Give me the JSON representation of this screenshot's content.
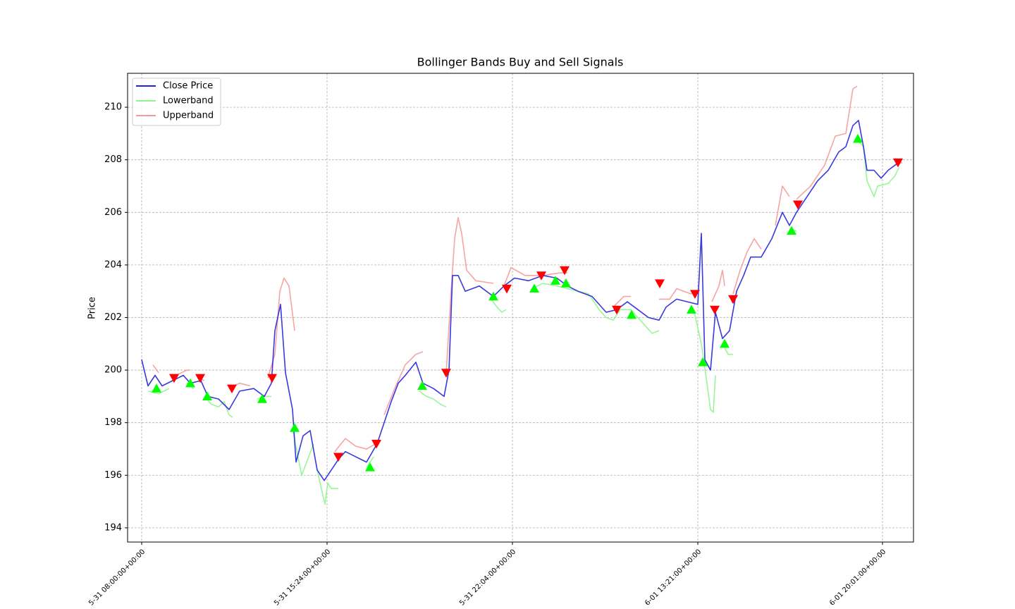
{
  "chart_data": {
    "type": "line",
    "title": "Bollinger Bands Buy and Sell Signals",
    "y_label": "Price",
    "xlim": [
      -20,
      1095
    ],
    "ylim": [
      193.46,
      211.29
    ],
    "xticks": [
      {
        "value": 0,
        "label": "5-31 08:00:00+00:00"
      },
      {
        "value": 263,
        "label": "5-31 15:24:00+00:00"
      },
      {
        "value": 526,
        "label": "5-31 22:04:00+00:00"
      },
      {
        "value": 789,
        "label": "6-01 13:21:00+00:00"
      },
      {
        "value": 1051,
        "label": "6-01 20:01:00+00:00"
      }
    ],
    "yticks": [
      194,
      196,
      198,
      200,
      202,
      204,
      206,
      208,
      210
    ],
    "grid": true,
    "legend": "upper left",
    "series": [
      {
        "name": "Close Price",
        "color": "#2323dd",
        "x": [
          0,
          9,
          19,
          29,
          44,
          59,
          69,
          84,
          94,
          109,
          124,
          139,
          159,
          174,
          184,
          189,
          197,
          204,
          214,
          219,
          229,
          239,
          249,
          259,
          269,
          279,
          289,
          304,
          319,
          334,
          344,
          354,
          364,
          374,
          389,
          399,
          414,
          429,
          436,
          441,
          449,
          459,
          479,
          499,
          514,
          529,
          549,
          569,
          589,
          604,
          619,
          639,
          659,
          674,
          689,
          704,
          719,
          734,
          744,
          759,
          774,
          789,
          794,
          799,
          807,
          814,
          824,
          834,
          844,
          854,
          864,
          879,
          894,
          909,
          919,
          929,
          944,
          959,
          974,
          989,
          999,
          1009,
          1017,
          1024,
          1029,
          1039,
          1049,
          1059,
          1074
        ],
        "values": [
          200.4,
          199.4,
          199.8,
          199.4,
          199.6,
          199.8,
          199.5,
          199.6,
          199.0,
          198.9,
          198.5,
          199.2,
          199.3,
          199.0,
          199.5,
          201.5,
          202.5,
          199.9,
          198.5,
          196.5,
          197.5,
          197.7,
          196.2,
          195.8,
          196.2,
          196.6,
          196.9,
          196.7,
          196.5,
          197.2,
          198.0,
          198.8,
          199.5,
          199.8,
          200.3,
          199.5,
          199.3,
          199.0,
          200.0,
          203.6,
          203.6,
          203.0,
          203.2,
          202.8,
          203.2,
          203.5,
          203.4,
          203.6,
          203.5,
          203.2,
          203.0,
          202.8,
          202.2,
          202.3,
          202.6,
          202.3,
          202.0,
          201.9,
          202.4,
          202.7,
          202.6,
          202.5,
          205.2,
          200.4,
          200.0,
          202.2,
          201.2,
          201.5,
          203.0,
          203.6,
          204.3,
          204.3,
          205.0,
          206.0,
          205.5,
          206.0,
          206.6,
          207.2,
          207.6,
          208.3,
          208.5,
          209.3,
          209.5,
          208.5,
          207.6,
          207.6,
          207.3,
          207.6,
          207.9
        ]
      },
      {
        "name": "Lowerband",
        "color": "#8ef58e",
        "x": [
          9,
          24,
          39,
          52,
          64,
          74,
          82,
          89,
          99,
          109,
          117,
          124,
          129,
          146,
          164,
          174,
          184,
          199,
          214,
          221,
          227,
          234,
          244,
          246,
          249,
          254,
          260,
          264,
          269,
          279,
          299,
          319,
          329,
          362,
          394,
          404,
          414,
          424,
          432,
          464,
          496,
          504,
          511,
          517,
          536,
          554,
          569,
          589,
          604,
          619,
          634,
          649,
          659,
          669,
          679,
          694,
          704,
          714,
          724,
          734,
          759,
          784,
          794,
          802,
          807,
          811,
          814,
          819,
          824,
          832,
          839,
          879,
          919,
          929,
          972,
          1014,
          1024,
          1029,
          1039,
          1044,
          1059,
          1069,
          1074
        ],
        "values": [
          199.2,
          199.1,
          199.3,
          null,
          199.5,
          199.3,
          null,
          199.0,
          198.7,
          198.6,
          198.8,
          198.3,
          198.2,
          null,
          198.9,
          199.0,
          199.0,
          null,
          197.8,
          196.8,
          196.0,
          196.5,
          197.2,
          null,
          196.2,
          195.6,
          194.9,
          195.7,
          195.5,
          195.5,
          null,
          196.3,
          196.7,
          null,
          199.2,
          199.0,
          198.9,
          198.7,
          198.6,
          null,
          202.7,
          202.4,
          202.2,
          202.3,
          null,
          203.1,
          203.3,
          203.2,
          203.1,
          203.0,
          202.9,
          202.3,
          202.0,
          201.9,
          202.3,
          202.3,
          202.0,
          201.7,
          201.4,
          201.5,
          null,
          202.2,
          201.0,
          199.5,
          198.5,
          198.4,
          199.8,
          null,
          201.0,
          200.6,
          200.6,
          null,
          205.3,
          205.3,
          null,
          208.8,
          208.5,
          207.2,
          206.6,
          207.0,
          207.1,
          207.4,
          207.7
        ]
      },
      {
        "name": "Upperband",
        "color": "#f59a9a",
        "x": [
          16,
          24,
          36,
          49,
          64,
          69,
          74,
          79,
          89,
          107,
          124,
          139,
          154,
          167,
          179,
          189,
          196,
          202,
          209,
          217,
          245,
          274,
          289,
          304,
          319,
          339,
          341,
          344,
          359,
          374,
          389,
          399,
          415,
          432,
          439,
          444,
          449,
          454,
          461,
          474,
          499,
          506,
          514,
          524,
          544,
          569,
          594,
          604,
          636,
          669,
          684,
          694,
          714,
          734,
          749,
          759,
          779,
          789,
          799,
          809,
          819,
          824,
          827,
          833,
          839,
          849,
          859,
          869,
          879,
          889,
          899,
          909,
          919,
          924,
          929,
          949,
          969,
          984,
          999,
          1009,
          1015,
          1042,
          1069,
          1079
        ],
        "values": [
          200.2,
          199.9,
          null,
          199.8,
          200.0,
          200.0,
          null,
          199.7,
          199.6,
          null,
          199.3,
          199.5,
          199.4,
          null,
          199.7,
          200.6,
          203.0,
          203.5,
          203.2,
          201.5,
          null,
          196.9,
          197.4,
          197.1,
          197.0,
          197.3,
          null,
          198.3,
          199.3,
          200.2,
          200.6,
          200.7,
          null,
          199.9,
          203.0,
          205.0,
          205.8,
          205.2,
          203.8,
          203.4,
          203.3,
          null,
          203.2,
          203.9,
          203.6,
          203.6,
          203.7,
          203.7,
          null,
          202.4,
          202.8,
          202.8,
          null,
          202.7,
          202.7,
          203.1,
          202.9,
          203.0,
          null,
          202.6,
          203.2,
          203.8,
          203.2,
          null,
          202.9,
          203.8,
          204.5,
          205.0,
          204.6,
          null,
          205.5,
          207.0,
          206.6,
          null,
          206.5,
          207.0,
          207.8,
          208.9,
          209.0,
          210.7,
          210.8,
          null,
          207.8,
          207.9
        ]
      }
    ],
    "markers": [
      {
        "marker": "triangle-up",
        "color": "#00ff00",
        "x": [
          21,
          69,
          93,
          171,
          217,
          324,
          398,
          499,
          557,
          587,
          602,
          695,
          780,
          796,
          827,
          922,
          1016
        ],
        "values": [
          199.3,
          199.5,
          199.0,
          198.9,
          197.8,
          196.3,
          199.4,
          202.8,
          203.1,
          203.4,
          203.3,
          202.1,
          202.3,
          200.3,
          201.0,
          205.3,
          208.8
        ]
      },
      {
        "marker": "triangle-down",
        "color": "#ff0000",
        "x": [
          46,
          83,
          128,
          185,
          279,
          333,
          432,
          518,
          567,
          600,
          674,
          735,
          785,
          813,
          839,
          931,
          1073
        ],
        "values": [
          199.7,
          199.7,
          199.3,
          199.7,
          196.7,
          197.2,
          199.9,
          203.1,
          203.6,
          203.8,
          202.3,
          203.3,
          202.9,
          202.3,
          202.7,
          206.3,
          207.9
        ]
      }
    ]
  }
}
